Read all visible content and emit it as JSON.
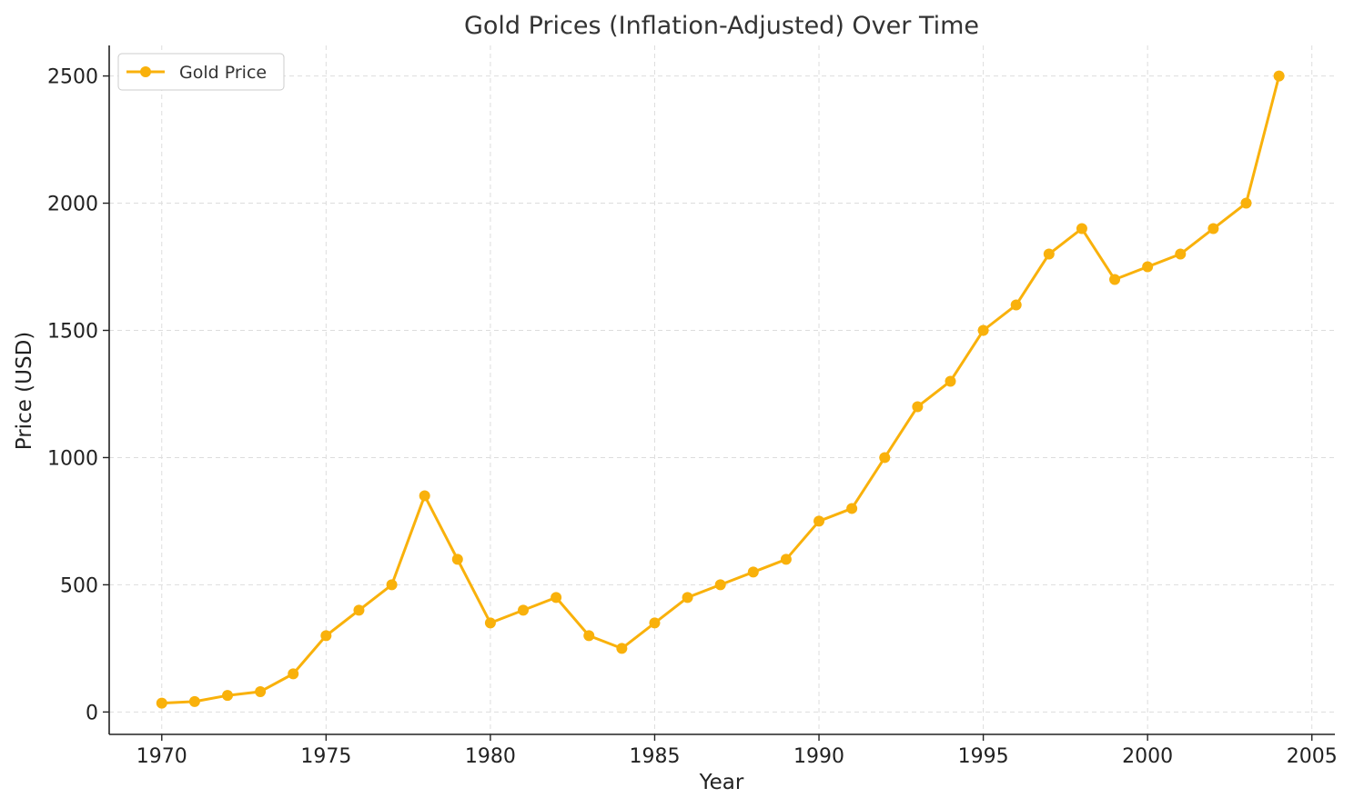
{
  "chart_data": {
    "type": "line",
    "title": "Gold Prices (Inflation-Adjusted) Over Time",
    "xlabel": "Year",
    "ylabel": "Price (USD)",
    "xlim": [
      1968.4,
      2005.7
    ],
    "ylim": [
      -88,
      2620
    ],
    "xticks": [
      1970,
      1975,
      1980,
      1985,
      1990,
      1995,
      2000,
      2005
    ],
    "yticks": [
      0,
      500,
      1000,
      1500,
      2000,
      2500
    ],
    "grid": true,
    "legend_position": "top-left",
    "series": [
      {
        "name": "Gold Price",
        "color": "#F9B10B",
        "x": [
          1970,
          1971,
          1972,
          1973,
          1974,
          1975,
          1976,
          1977,
          1978,
          1979,
          1980,
          1981,
          1982,
          1983,
          1984,
          1985,
          1986,
          1987,
          1988,
          1989,
          1990,
          1991,
          1992,
          1993,
          1994,
          1995,
          1996,
          1997,
          1998,
          1999,
          2000,
          2001,
          2002,
          2003,
          2004
        ],
        "y": [
          35,
          41,
          65,
          80,
          150,
          300,
          400,
          500,
          850,
          600,
          350,
          400,
          450,
          300,
          250,
          350,
          450,
          500,
          550,
          600,
          750,
          800,
          1000,
          1200,
          1300,
          1500,
          1600,
          1800,
          1900,
          1700,
          1750,
          1800,
          1900,
          2000,
          2500
        ]
      }
    ]
  }
}
